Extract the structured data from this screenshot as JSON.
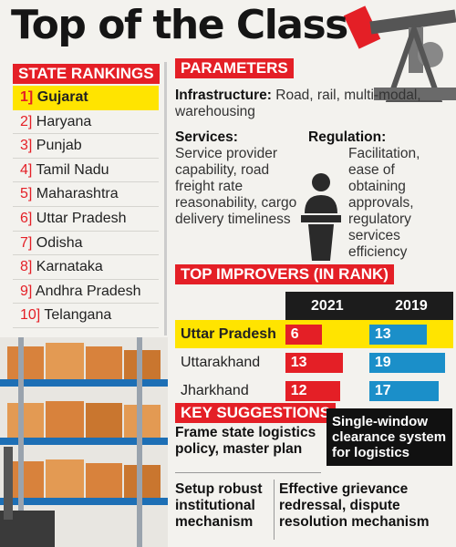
{
  "title": "Top of the Class",
  "rankings": {
    "heading": "STATE RANKINGS",
    "items": [
      {
        "num": "1]",
        "state": "Gujarat"
      },
      {
        "num": "2]",
        "state": "Haryana"
      },
      {
        "num": "3]",
        "state": "Punjab"
      },
      {
        "num": "4]",
        "state": "Tamil Nadu"
      },
      {
        "num": "5]",
        "state": "Maharashtra"
      },
      {
        "num": "6]",
        "state": "Uttar Pradesh"
      },
      {
        "num": "7]",
        "state": "Odisha"
      },
      {
        "num": "8]",
        "state": "Karnataka"
      },
      {
        "num": "9]",
        "state": "Andhra Pradesh"
      },
      {
        "num": "10]",
        "state": "Telangana"
      }
    ]
  },
  "parameters": {
    "heading": "PARAMETERS",
    "infrastructure": {
      "label": "Infrastructure:",
      "text": "Road, rail, multi-modal, warehousing"
    },
    "services": {
      "label": "Services:",
      "text": "Service provider capability, road freight rate reasonability, cargo delivery timeliness"
    },
    "regulation": {
      "label": "Regulation:",
      "text": "Facilitation, ease of obtaining approvals, regulatory services efficiency"
    }
  },
  "improvers": {
    "heading": "TOP IMPROVERS (IN RANK)",
    "years": [
      "2021",
      "2019"
    ],
    "rows": [
      {
        "state": "Uttar Pradesh",
        "r2021": 6,
        "r2019": 13
      },
      {
        "state": "Uttarakhand",
        "r2021": 13,
        "r2019": 19
      },
      {
        "state": "Jharkhand",
        "r2021": 12,
        "r2019": 17
      }
    ]
  },
  "suggestions": {
    "heading": "KEY SUGGESTIONS",
    "items": [
      "Frame state logistics policy, master plan",
      "Single-window clearance system for logistics",
      "Setup robust institutional mechanism",
      "Effective grievance redressal, dispute resolution mechanism"
    ]
  },
  "colors": {
    "accent": "#e41f26",
    "highlight": "#ffe400",
    "blue": "#1b8fc9",
    "dark": "#1c1c1c"
  }
}
